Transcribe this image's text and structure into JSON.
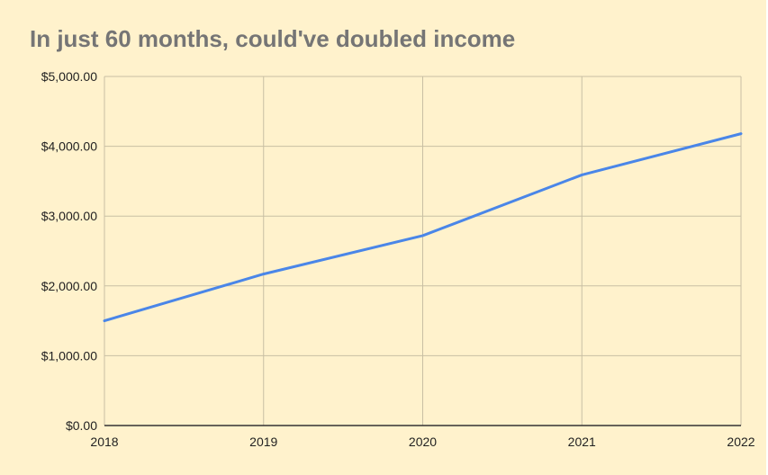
{
  "chart_data": {
    "type": "line",
    "title": "In just 60 months, could've doubled income",
    "xlabel": "",
    "ylabel": "",
    "categories": [
      "2018",
      "2019",
      "2020",
      "2021",
      "2022"
    ],
    "series": [
      {
        "values": [
          1500,
          2170,
          2720,
          3590,
          4180
        ]
      }
    ],
    "ylim": [
      0,
      5000
    ],
    "yticks": [
      0,
      1000,
      2000,
      3000,
      4000,
      5000
    ],
    "ytick_labels": [
      "$0.00",
      "$1,000.00",
      "$2,000.00",
      "$3,000.00",
      "$4,000.00",
      "$5,000.00"
    ],
    "grid": true,
    "legend": "none",
    "colors": {
      "background": "#fff2cc",
      "line": "#4a86e8",
      "grid": "#c8bfa3",
      "axis": "#333333",
      "title": "#757575"
    }
  }
}
